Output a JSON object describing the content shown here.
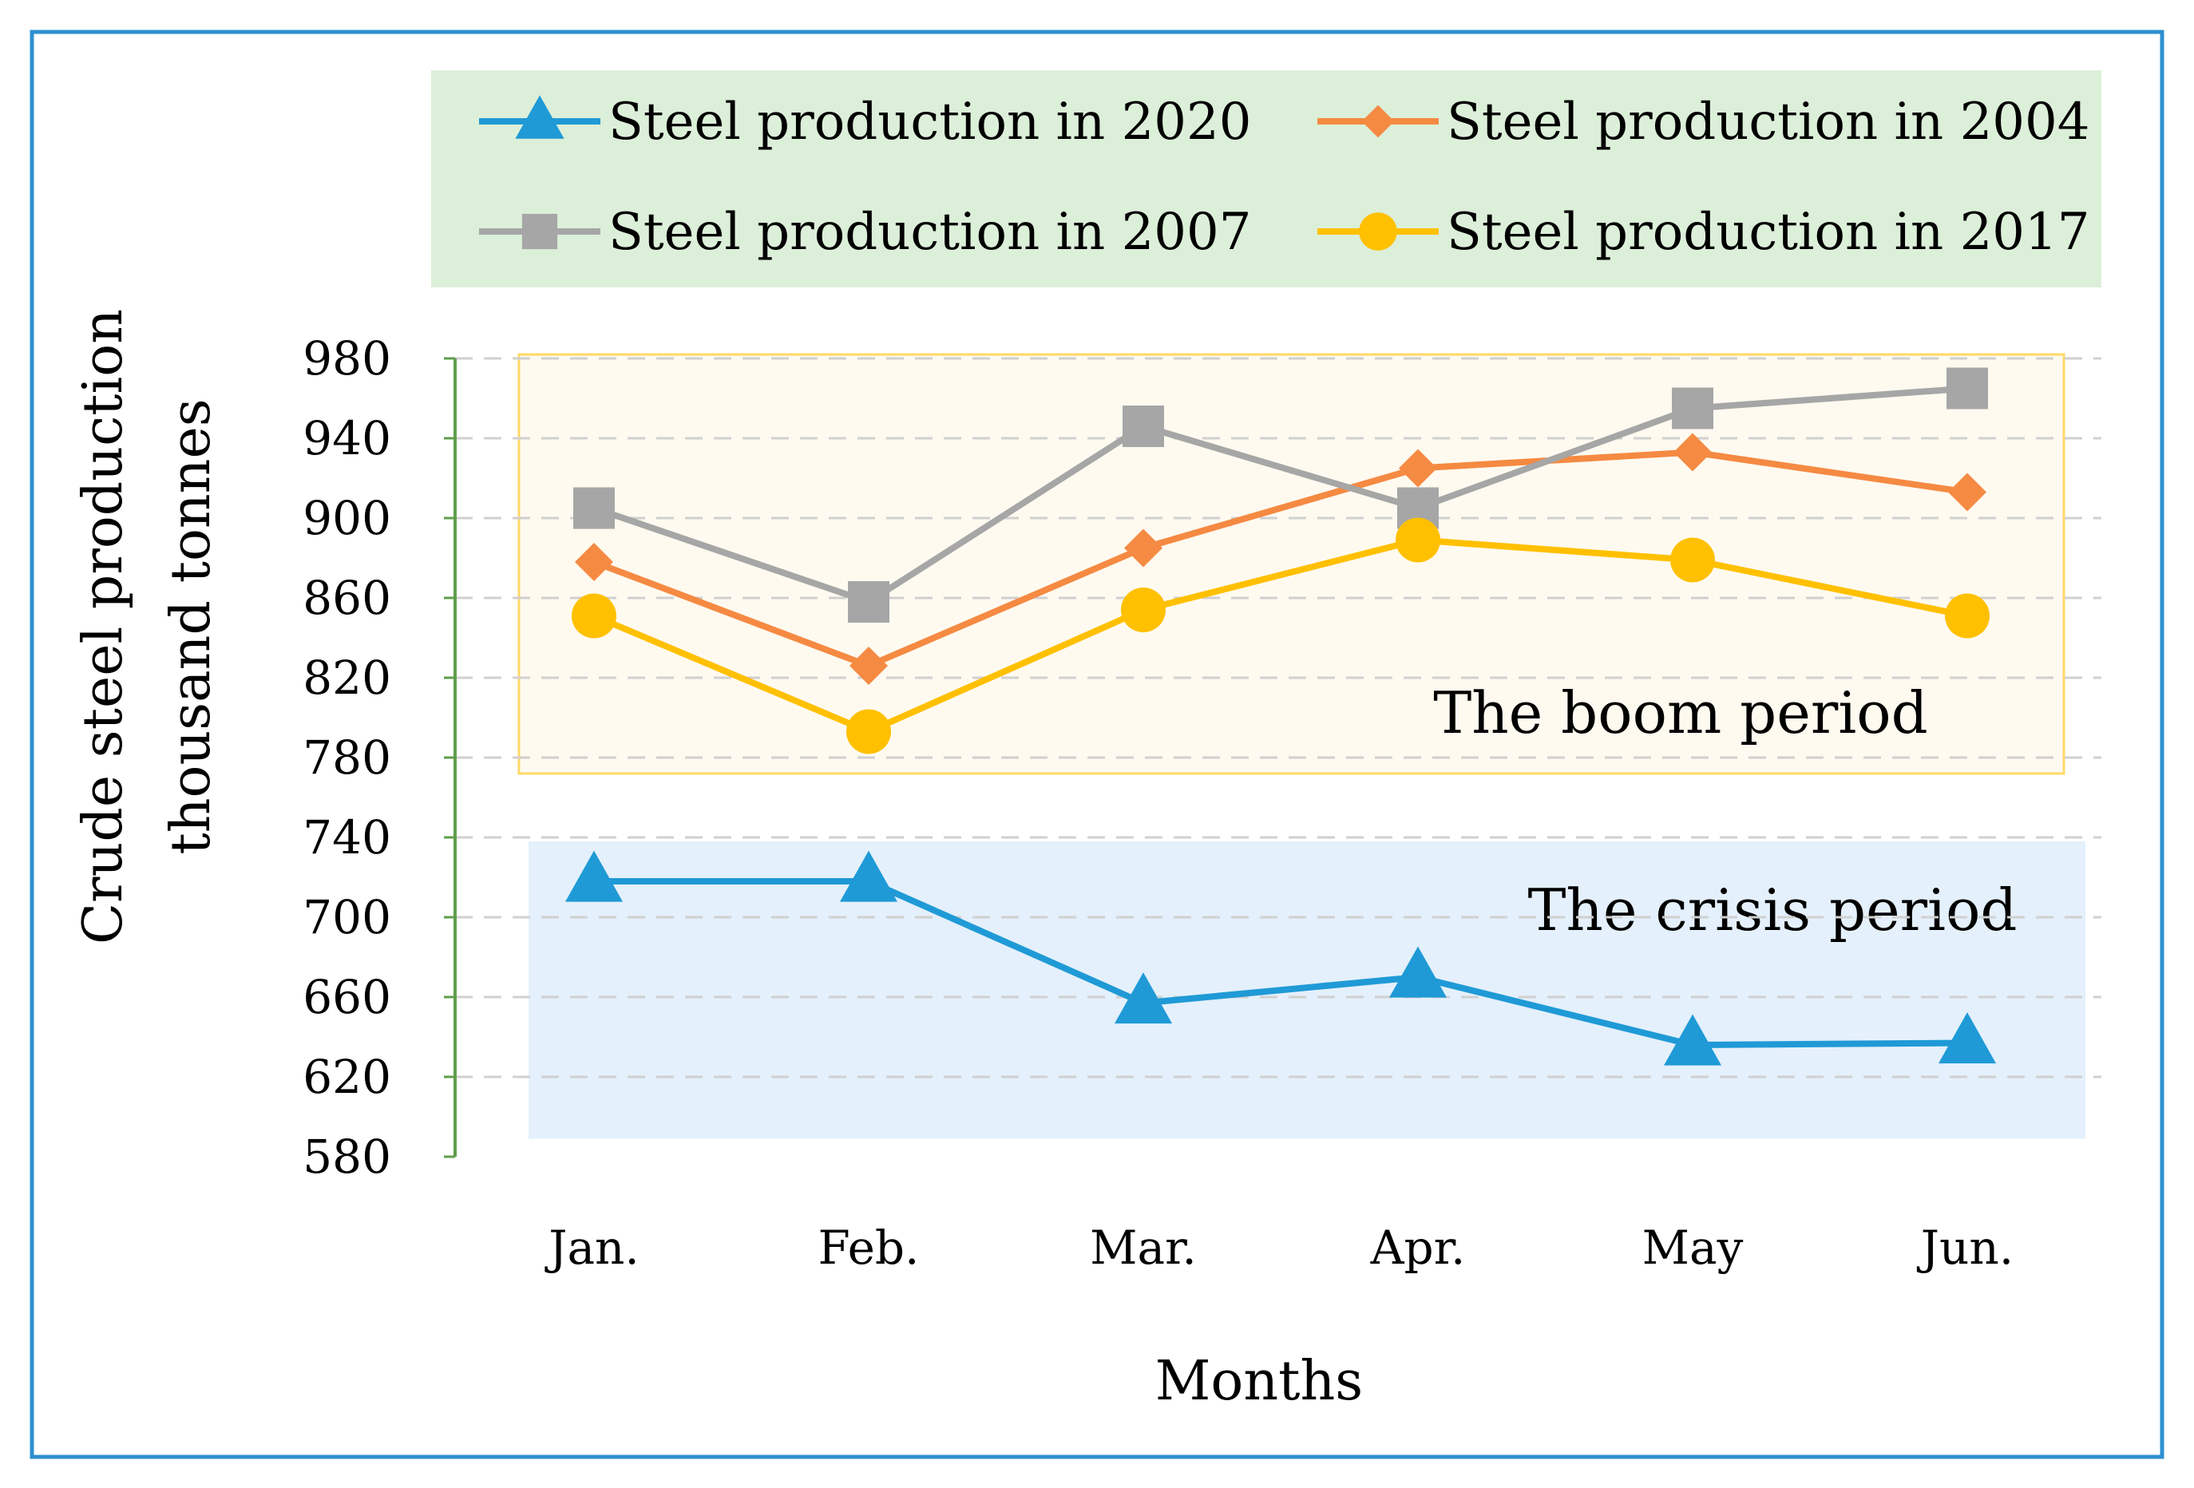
{
  "chart_data": {
    "type": "line",
    "title": "",
    "xlabel": "Months",
    "ylabel": [
      "Crude steel production",
      "thousand tonnes"
    ],
    "categories": [
      "Jan.",
      "Feb.",
      "Mar.",
      "Apr.",
      "May",
      "Jun."
    ],
    "ylim": [
      580,
      980
    ],
    "yticks": [
      580,
      620,
      660,
      700,
      740,
      780,
      820,
      860,
      900,
      940,
      980
    ],
    "grid": true,
    "legend_position": "top",
    "series": [
      {
        "name": "Steel production in 2020",
        "marker": "triangle",
        "color": "#1f9ad6",
        "values": [
          718,
          718,
          657,
          670,
          636,
          637
        ]
      },
      {
        "name": "Steel production in 2004",
        "marker": "diamond",
        "color": "#f58a42",
        "values": [
          878,
          826,
          885,
          925,
          933,
          913
        ]
      },
      {
        "name": "Steel production in 2007",
        "marker": "square",
        "color": "#a6a6a6",
        "values": [
          905,
          858,
          946,
          905,
          955,
          965
        ]
      },
      {
        "name": "Steel production in 2017",
        "marker": "circle",
        "color": "#ffc000",
        "values": [
          851,
          793,
          854,
          889,
          879,
          851
        ]
      }
    ],
    "annotations": [
      {
        "label": "The boom period",
        "y_range": [
          772,
          982
        ],
        "fill": "#fffaf0",
        "stroke": "#ffd966"
      },
      {
        "label": "The crisis period",
        "y_range": [
          589,
          738
        ],
        "fill": "#e4f0fb",
        "stroke": "none"
      }
    ],
    "colors": {
      "frame": "#2e8fcf",
      "legend_bg": "#dcefd9",
      "axis": "#5f9e4b",
      "gridline": "#d0d0d0"
    }
  }
}
